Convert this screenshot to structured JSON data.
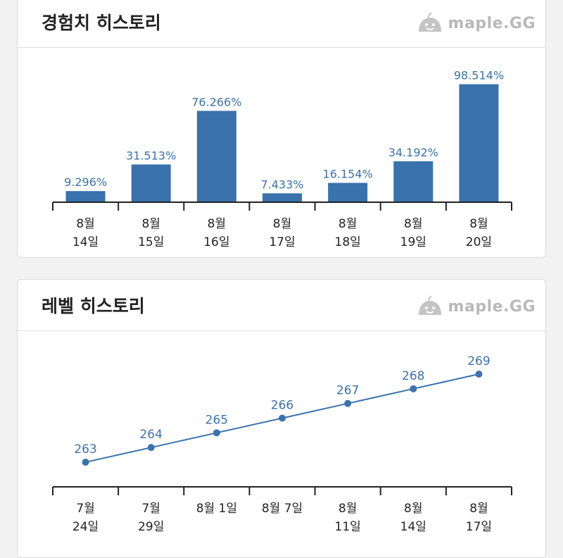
{
  "exp_card": {
    "title": "경험치 히스토리",
    "logo_text": "maple.GG",
    "logo_icon": "slime-icon"
  },
  "level_card": {
    "title": "레벨 히스토리",
    "logo_text": "maple.GG",
    "logo_icon": "slime-icon"
  },
  "colors": {
    "bar": "#3a72ad",
    "label": "#3a72ad",
    "axis": "#222222",
    "tick_text": "#222222"
  },
  "chart_data": [
    {
      "type": "bar",
      "categories": [
        [
          "8월",
          "14일"
        ],
        [
          "8월",
          "15일"
        ],
        [
          "8월",
          "16일"
        ],
        [
          "8월",
          "17일"
        ],
        [
          "8월",
          "18일"
        ],
        [
          "8월",
          "19일"
        ],
        [
          "8월",
          "20일"
        ]
      ],
      "values": [
        9.296,
        31.513,
        76.266,
        7.433,
        16.154,
        34.192,
        98.514
      ],
      "value_labels": [
        "9.296%",
        "31.513%",
        "76.266%",
        "7.433%",
        "16.154%",
        "34.192%",
        "98.514%"
      ],
      "ylim": [
        0,
        100
      ]
    },
    {
      "type": "line",
      "categories": [
        [
          "7월",
          "24일"
        ],
        [
          "7월",
          "29일"
        ],
        [
          "8월 1일"
        ],
        [
          "8월 7일"
        ],
        [
          "8월",
          "11일"
        ],
        [
          "8월",
          "14일"
        ],
        [
          "8월",
          "17일"
        ]
      ],
      "values": [
        263,
        264,
        265,
        266,
        267,
        268,
        269
      ],
      "value_labels": [
        "263",
        "264",
        "265",
        "266",
        "267",
        "268",
        "269"
      ],
      "ylim": [
        263,
        269
      ]
    }
  ]
}
